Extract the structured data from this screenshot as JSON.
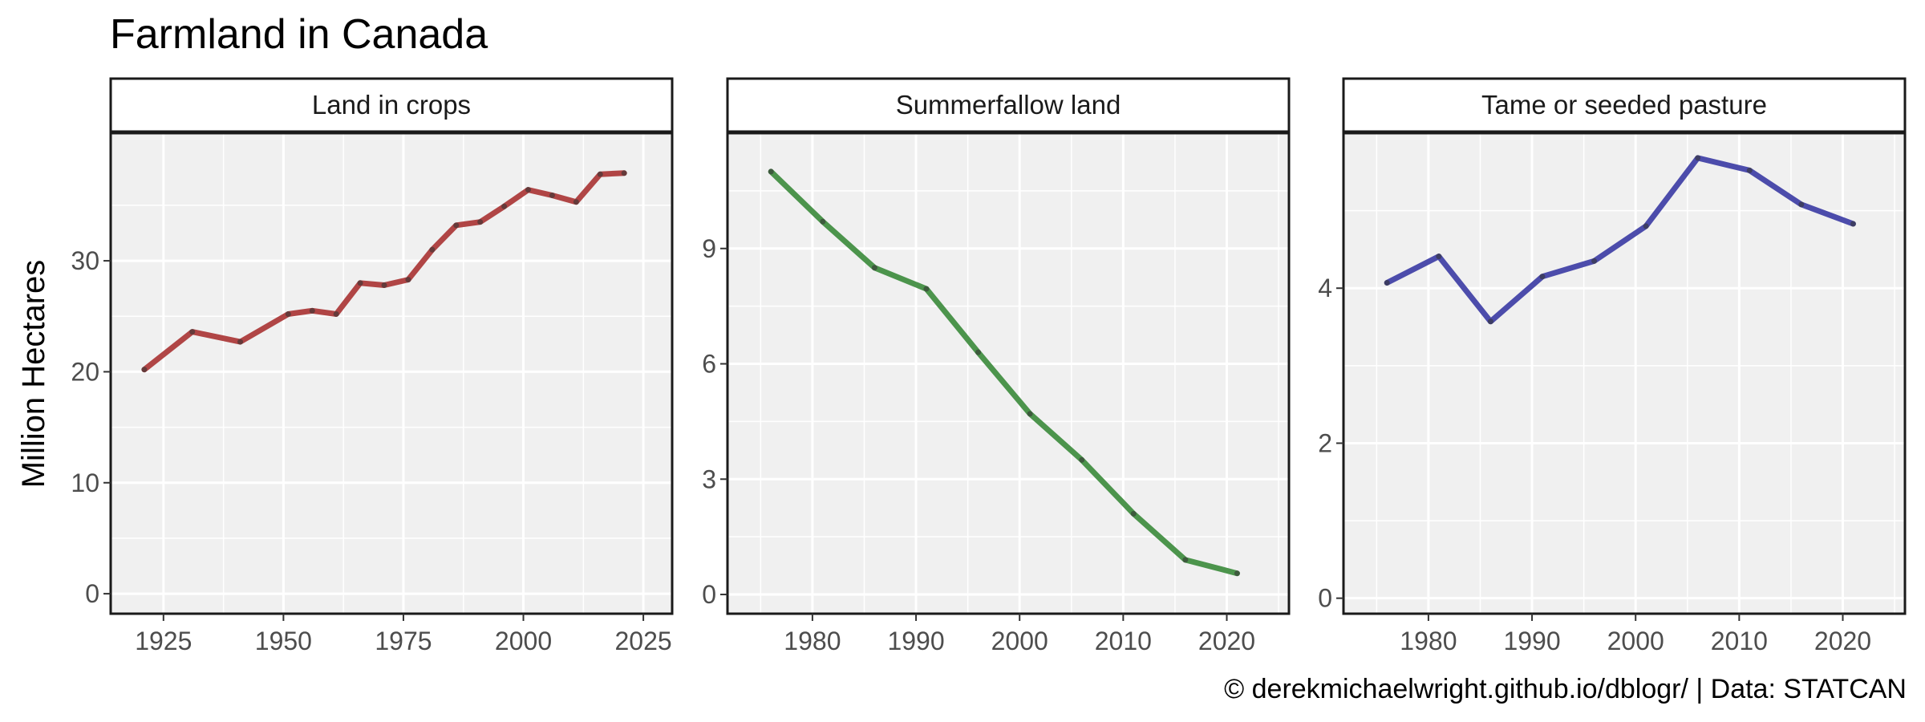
{
  "chart_data": {
    "type": "line",
    "title": "Farmland in Canada",
    "ylabel": "Million Hectares",
    "caption": "© derekmichaelwright.github.io/dblogr/ | Data: STATCAN",
    "grid": true,
    "facets": [
      {
        "name": "Land in crops",
        "color": "#a83232",
        "x": [
          1921,
          1931,
          1941,
          1951,
          1956,
          1961,
          1966,
          1971,
          1976,
          1981,
          1986,
          1991,
          1996,
          2001,
          2006,
          2011,
          2016,
          2021
        ],
        "y": [
          20.2,
          23.6,
          22.7,
          25.2,
          25.5,
          25.2,
          28.0,
          27.8,
          28.3,
          31.0,
          33.2,
          33.5,
          34.9,
          36.4,
          35.9,
          35.3,
          37.8,
          37.9
        ],
        "xlim": [
          1914,
          2031
        ],
        "ylim": [
          -1.8,
          41.5
        ],
        "xticks": [
          1925,
          1950,
          1975,
          2000,
          2025
        ],
        "yticks": [
          0,
          10,
          20,
          30
        ]
      },
      {
        "name": "Summerfallow land",
        "color": "#3a8a3a",
        "x": [
          1976,
          1981,
          1986,
          1991,
          1996,
          2001,
          2006,
          2011,
          2016,
          2021
        ],
        "y": [
          11.0,
          9.7,
          8.5,
          7.95,
          6.3,
          4.7,
          3.5,
          2.1,
          0.9,
          0.55
        ],
        "xlim": [
          1971.8,
          2026
        ],
        "ylim": [
          -0.5,
          12.0
        ],
        "xticks": [
          1980,
          1990,
          2000,
          2010,
          2020
        ],
        "yticks": [
          0,
          3,
          6,
          9
        ]
      },
      {
        "name": "Tame or seeded pasture",
        "color": "#3a3aa3",
        "x": [
          1976,
          1981,
          1986,
          1991,
          1996,
          2001,
          2006,
          2011,
          2016,
          2021
        ],
        "y": [
          4.07,
          4.41,
          3.57,
          4.15,
          4.35,
          4.8,
          5.68,
          5.52,
          5.08,
          4.83
        ],
        "xlim": [
          1971.8,
          2026
        ],
        "ylim": [
          -0.2,
          6.0
        ],
        "xticks": [
          1980,
          1990,
          2000,
          2010,
          2020
        ],
        "yticks": [
          0,
          2,
          4
        ]
      }
    ]
  }
}
